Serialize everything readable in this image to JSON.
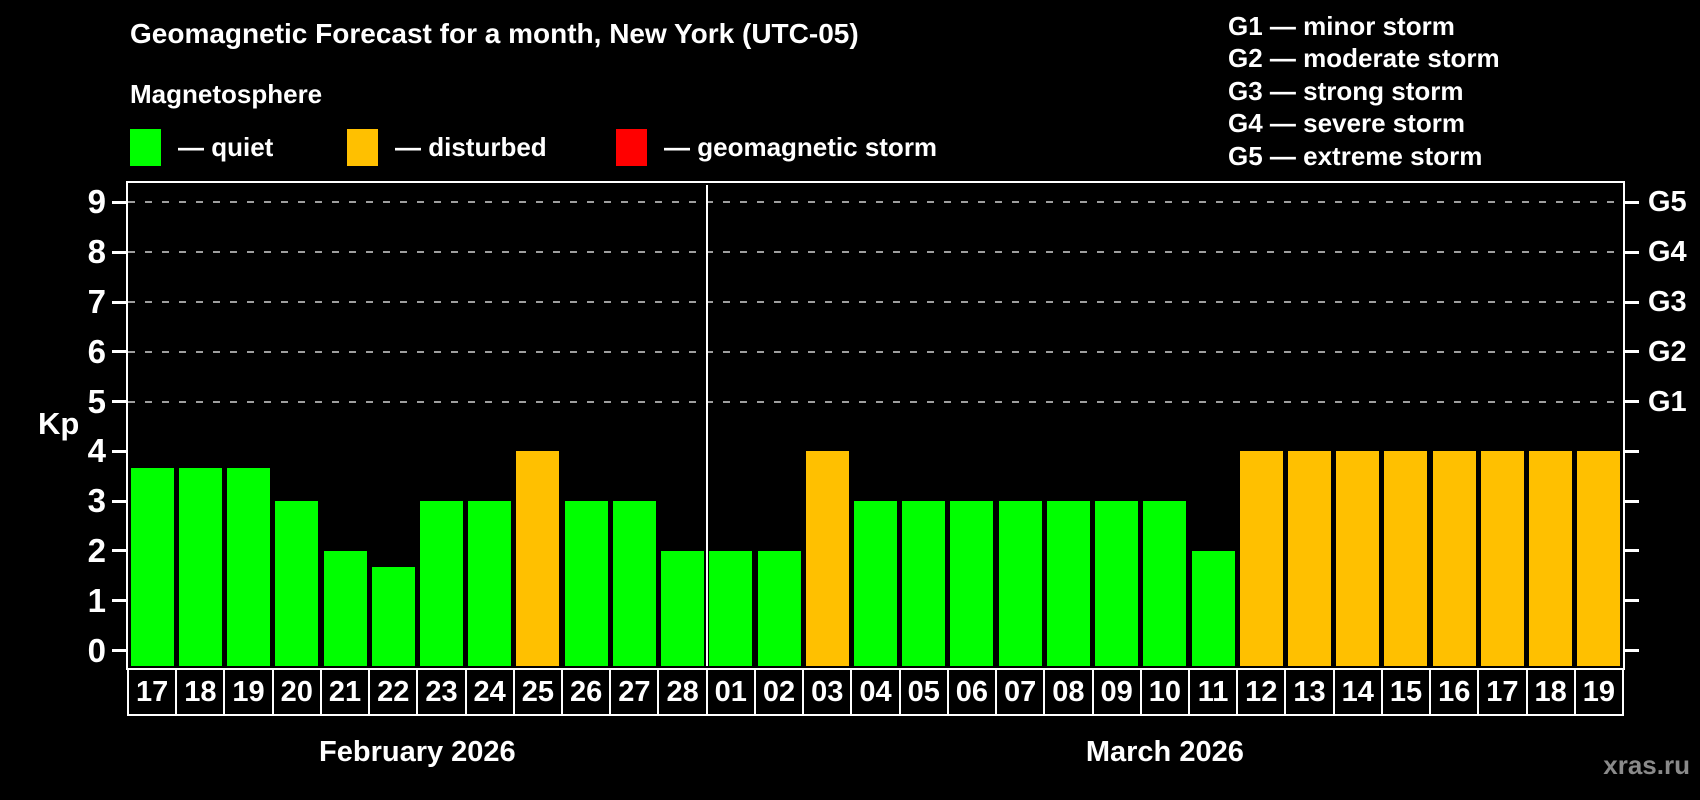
{
  "header": {
    "title": "Geomagnetic Forecast for a month, New York (UTC-05)"
  },
  "legend": {
    "title": "Magnetosphere",
    "items": [
      {
        "name": "quiet",
        "label": "— quiet",
        "color": "#00ff00"
      },
      {
        "name": "disturbed",
        "label": "— disturbed",
        "color": "#ffc000"
      },
      {
        "name": "storm",
        "label": "— geomagnetic storm",
        "color": "#ff0000"
      }
    ]
  },
  "g_legend": {
    "items": [
      "G1 — minor storm",
      "G2 — moderate storm",
      "G3 — strong storm",
      "G4 — severe storm",
      "G5 — extreme storm"
    ]
  },
  "watermark": "xras.ru",
  "chart_data": {
    "type": "bar",
    "title": "Geomagnetic Forecast for a month, New York (UTC-05)",
    "ylabel": "Kp",
    "ylim": [
      0,
      9.4
    ],
    "yticks": [
      0,
      1,
      2,
      3,
      4,
      5,
      6,
      7,
      8,
      9
    ],
    "gridlines_at": [
      5,
      6,
      7,
      8,
      9
    ],
    "grid": "horizontal dashed lines only at storm levels G1–G5",
    "legend_position": "top-left",
    "right_axis_labels": [
      {
        "label": "G1",
        "kp": 5
      },
      {
        "label": "G2",
        "kp": 6
      },
      {
        "label": "G3",
        "kp": 7
      },
      {
        "label": "G4",
        "kp": 8
      },
      {
        "label": "G5",
        "kp": 9
      }
    ],
    "colors": {
      "quiet": "#00ff00",
      "disturbed": "#ffc000",
      "storm": "#ff0000",
      "grid": "#9e9e9e",
      "axis": "#ffffff",
      "background": "#000000"
    },
    "series": [
      {
        "month": "February 2026",
        "days": [
          "17",
          "18",
          "19",
          "20",
          "21",
          "22",
          "23",
          "24",
          "25",
          "26",
          "27",
          "28"
        ],
        "values": [
          3.67,
          3.67,
          3.67,
          3,
          2,
          1.67,
          3,
          3,
          4,
          3,
          3,
          2
        ],
        "status": [
          "quiet",
          "quiet",
          "quiet",
          "quiet",
          "quiet",
          "quiet",
          "quiet",
          "quiet",
          "disturbed",
          "quiet",
          "quiet",
          "quiet"
        ]
      },
      {
        "month": "March 2026",
        "days": [
          "01",
          "02",
          "03",
          "04",
          "05",
          "06",
          "07",
          "08",
          "09",
          "10",
          "11",
          "12",
          "13",
          "14",
          "15",
          "16",
          "17",
          "18",
          "19"
        ],
        "values": [
          2,
          2,
          4,
          3,
          3,
          3,
          3,
          3,
          3,
          3,
          2,
          4,
          4,
          4,
          4,
          4,
          4,
          4,
          4
        ],
        "status": [
          "quiet",
          "quiet",
          "disturbed",
          "quiet",
          "quiet",
          "quiet",
          "quiet",
          "quiet",
          "quiet",
          "quiet",
          "quiet",
          "disturbed",
          "disturbed",
          "disturbed",
          "disturbed",
          "disturbed",
          "disturbed",
          "disturbed",
          "disturbed"
        ]
      }
    ]
  }
}
